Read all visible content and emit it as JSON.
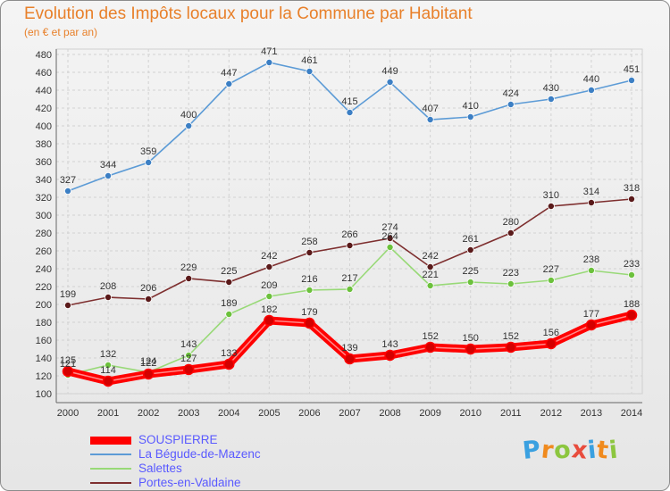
{
  "header": {
    "title": "Evolution des Impôts locaux pour la Commune par Habitant",
    "subtitle": "(en € et par an)"
  },
  "logo": {
    "text": "Proxiti",
    "letter_colors": [
      "#3aa0e0",
      "#f08a1e",
      "#8cc63f",
      "#e84c3d",
      "#3aa0e0",
      "#f08a1e",
      "#8cc63f"
    ]
  },
  "chart_data": {
    "type": "line",
    "title": "Evolution des Impôts locaux pour la Commune par Habitant",
    "subtitle": "(en € et par an)",
    "x": [
      "2000",
      "2001",
      "2002",
      "2003",
      "2004",
      "2005",
      "2006",
      "2007",
      "2008",
      "2009",
      "2010",
      "2011",
      "2012",
      "2013",
      "2014"
    ],
    "ylim": [
      100,
      480
    ],
    "yticks": [
      100,
      120,
      140,
      160,
      180,
      200,
      220,
      240,
      260,
      280,
      300,
      320,
      340,
      360,
      380,
      400,
      420,
      440,
      460,
      480
    ],
    "grid": true,
    "legend_position": "bottom-left",
    "series": [
      {
        "name": "La Bégude-de-Mazenc",
        "color": "#5c9bd6",
        "marker": "#3c7fc4",
        "values": [
          327,
          344,
          359,
          400,
          447,
          471,
          461,
          415,
          449,
          407,
          410,
          424,
          430,
          440,
          451
        ]
      },
      {
        "name": "Salettes",
        "color": "#98d977",
        "marker": "#6cc13c",
        "values": [
          121,
          132,
          124,
          143,
          189,
          209,
          216,
          217,
          264,
          221,
          225,
          223,
          227,
          238,
          233
        ]
      },
      {
        "name": "Portes-en-Valdaine",
        "color": "#7e2f2f",
        "marker": "#5a1a1a",
        "values": [
          199,
          208,
          206,
          229,
          225,
          242,
          258,
          266,
          274,
          242,
          261,
          280,
          310,
          314,
          318
        ]
      },
      {
        "name": "SOUSPIERRE",
        "color": "#ff0000",
        "marker": "#d40000",
        "bold": true,
        "values": [
          125,
          114,
          122,
          127,
          133,
          182,
          179,
          139,
          143,
          152,
          150,
          152,
          156,
          177,
          188
        ]
      }
    ],
    "value_labels": [
      [
        "327",
        "344",
        "359",
        "400",
        "447",
        "471",
        "461",
        "415",
        "449",
        "407",
        "410",
        "424",
        "430",
        "440",
        "451"
      ],
      [
        "121",
        "132",
        "124",
        "143",
        "189",
        "209",
        "216",
        "217",
        "264",
        "221",
        "225",
        "223",
        "227",
        "238",
        "233"
      ],
      [
        "199",
        "208",
        "206",
        "229",
        "225",
        "242",
        "258",
        "266",
        "274",
        "242",
        "261",
        "280",
        "310",
        "314",
        "318"
      ],
      [
        "125",
        "114",
        "122",
        "127",
        "133",
        "182",
        "179",
        "139",
        "143",
        "152",
        "150",
        "152",
        "156",
        "177",
        "188"
      ]
    ],
    "legend_order": [
      "SOUSPIERRE",
      "La Bégude-de-Mazenc",
      "Salettes",
      "Portes-en-Valdaine"
    ]
  }
}
